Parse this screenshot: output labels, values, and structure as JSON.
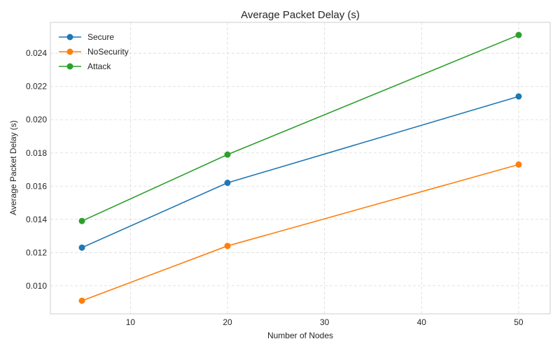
{
  "chart_data": {
    "type": "line",
    "title": "Average Packet Delay (s)",
    "xlabel": "Number of Nodes",
    "ylabel": "Average Packet Delay (s)",
    "x": [
      5,
      20,
      50
    ],
    "xlim": [
      1.75,
      53.25
    ],
    "ylim": [
      0.00831,
      0.02586
    ],
    "xticks": [
      10,
      20,
      30,
      40,
      50
    ],
    "yticks": [
      0.01,
      0.012,
      0.014,
      0.016,
      0.018,
      0.02,
      0.022,
      0.024
    ],
    "ytick_labels": [
      "0.010",
      "0.012",
      "0.014",
      "0.016",
      "0.018",
      "0.020",
      "0.022",
      "0.024"
    ],
    "grid": true,
    "legend_position": "top-left",
    "series": [
      {
        "name": "Secure",
        "color": "#1f77b4",
        "values": [
          0.0123,
          0.0162,
          0.0214
        ]
      },
      {
        "name": "NoSecurity",
        "color": "#ff7f0e",
        "values": [
          0.0091,
          0.0124,
          0.0173
        ]
      },
      {
        "name": "Attack",
        "color": "#2ca02c",
        "values": [
          0.0139,
          0.0179,
          0.0251
        ]
      }
    ]
  }
}
